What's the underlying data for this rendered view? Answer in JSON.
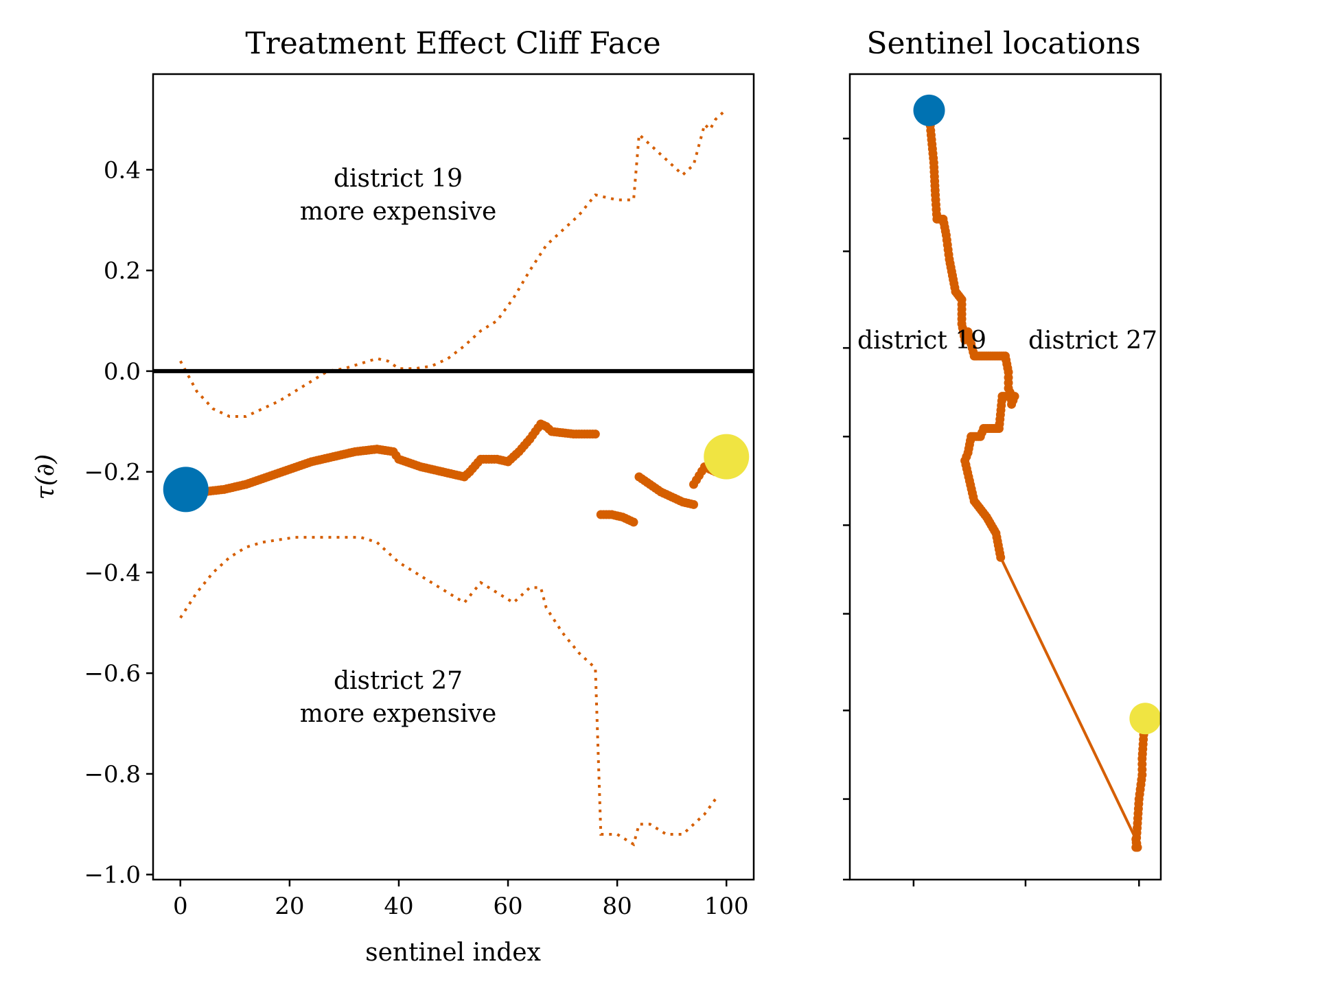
{
  "colors": {
    "series": "#d55e00",
    "start_marker": "#0072b2",
    "end_marker": "#f0e442",
    "zero_line": "#000000"
  },
  "chart_data": [
    {
      "type": "scatter",
      "title": "Treatment Effect Cliff Face",
      "xlabel": "sentinel index",
      "ylabel": "τ(∂)",
      "xlim": [
        -5,
        105
      ],
      "ylim": [
        -1.01,
        0.59
      ],
      "xticks": [
        0,
        20,
        40,
        60,
        80,
        100
      ],
      "xtick_labels": [
        "0",
        "20",
        "40",
        "60",
        "80",
        "100"
      ],
      "yticks": [
        0.4,
        0.2,
        0.0,
        -0.2,
        -0.4,
        -0.6,
        -0.8,
        -1.0
      ],
      "ytick_labels": [
        "0.4",
        "0.2",
        "0.0",
        "−0.2",
        "−0.4",
        "−0.6",
        "−0.8",
        "−1.0"
      ],
      "grid": false,
      "reference_line_y": 0.0,
      "annotations": [
        {
          "lines": [
            "district 19",
            "more expensive"
          ],
          "x": 40,
          "y": 0.4
        },
        {
          "lines": [
            "district 27",
            "more expensive"
          ],
          "x": 40,
          "y": -0.6
        }
      ],
      "estimate": {
        "x": [
          1,
          4,
          8,
          12,
          16,
          20,
          24,
          28,
          32,
          36,
          39,
          40,
          44,
          48,
          52,
          53,
          55,
          58,
          60,
          62,
          64,
          66,
          67,
          68,
          72,
          76
        ],
        "y": [
          -0.235,
          -0.24,
          -0.235,
          -0.225,
          -0.21,
          -0.195,
          -0.18,
          -0.17,
          -0.16,
          -0.155,
          -0.16,
          -0.175,
          -0.19,
          -0.2,
          -0.21,
          -0.2,
          -0.175,
          -0.175,
          -0.18,
          -0.16,
          -0.135,
          -0.105,
          -0.11,
          -0.12,
          -0.125,
          -0.125
        ],
        "segments": [
          {
            "x": [
              77,
              79,
              81,
              83
            ],
            "y": [
              -0.285,
              -0.285,
              -0.29,
              -0.3
            ]
          },
          {
            "x": [
              84,
              86,
              88,
              90,
              92,
              94
            ],
            "y": [
              -0.21,
              -0.225,
              -0.24,
              -0.25,
              -0.26,
              -0.265
            ]
          },
          {
            "x": [
              94,
              96,
              98
            ],
            "y": [
              -0.225,
              -0.19,
              -0.2
            ]
          }
        ]
      },
      "upper_bound": {
        "x": [
          0,
          3,
          6,
          9,
          12,
          15,
          18,
          21,
          24,
          27,
          30,
          33,
          36,
          38,
          40,
          43,
          46,
          49,
          52,
          55,
          58,
          61,
          64,
          67,
          70,
          73,
          76,
          80,
          83,
          84,
          86,
          89,
          92,
          94,
          96,
          97,
          98,
          100
        ],
        "y": [
          0.02,
          -0.04,
          -0.075,
          -0.09,
          -0.09,
          -0.075,
          -0.06,
          -0.04,
          -0.02,
          0.0,
          0.005,
          0.015,
          0.025,
          0.02,
          0.005,
          0.005,
          0.01,
          0.025,
          0.05,
          0.08,
          0.1,
          0.145,
          0.2,
          0.25,
          0.28,
          0.31,
          0.35,
          0.34,
          0.34,
          0.47,
          0.45,
          0.42,
          0.39,
          0.41,
          0.49,
          0.48,
          0.5,
          0.52
        ]
      },
      "lower_bound": {
        "x": [
          0,
          3,
          6,
          9,
          12,
          15,
          18,
          21,
          24,
          27,
          30,
          33,
          36,
          38,
          40,
          43,
          46,
          49,
          52,
          55,
          58,
          61,
          64,
          66,
          67,
          70,
          73,
          76,
          77,
          80,
          83,
          84,
          86,
          89,
          92,
          94,
          96,
          98
        ],
        "y": [
          -0.49,
          -0.44,
          -0.4,
          -0.37,
          -0.35,
          -0.34,
          -0.335,
          -0.33,
          -0.33,
          -0.33,
          -0.33,
          -0.33,
          -0.34,
          -0.36,
          -0.38,
          -0.4,
          -0.42,
          -0.44,
          -0.46,
          -0.42,
          -0.44,
          -0.46,
          -0.43,
          -0.43,
          -0.47,
          -0.52,
          -0.56,
          -0.59,
          -0.92,
          -0.92,
          -0.94,
          -0.9,
          -0.9,
          -0.92,
          -0.92,
          -0.9,
          -0.88,
          -0.85
        ]
      },
      "start_point": {
        "x": 1,
        "y": -0.235
      },
      "end_point": {
        "x": 100,
        "y": -0.17
      }
    },
    {
      "type": "line",
      "title": "Sentinel locations",
      "xlim": [
        0,
        1
      ],
      "ylim": [
        0,
        1
      ],
      "ticks_unlabeled": true,
      "annotations": [
        {
          "text": "district 19",
          "x": 0.23,
          "y": 0.64
        },
        {
          "text": "district 27",
          "x": 0.79,
          "y": 0.64
        }
      ],
      "path": {
        "x": [
          0.255,
          0.26,
          0.27,
          0.275,
          0.28,
          0.3,
          0.31,
          0.32,
          0.33,
          0.34,
          0.36,
          0.36,
          0.37,
          0.38,
          0.4,
          0.41,
          0.5,
          0.51,
          0.51,
          0.52,
          0.52,
          0.53,
          0.49,
          0.48,
          0.43,
          0.42,
          0.39,
          0.38,
          0.37,
          0.4,
          0.44,
          0.47,
          0.48,
          0.485,
          0.92,
          0.925,
          0.92,
          0.925,
          0.93,
          0.94,
          0.94,
          0.945,
          0.95
        ],
        "y": [
          0.955,
          0.93,
          0.89,
          0.85,
          0.82,
          0.82,
          0.8,
          0.77,
          0.75,
          0.73,
          0.72,
          0.69,
          0.67,
          0.68,
          0.65,
          0.65,
          0.65,
          0.63,
          0.61,
          0.6,
          0.59,
          0.6,
          0.6,
          0.56,
          0.56,
          0.55,
          0.55,
          0.53,
          0.52,
          0.47,
          0.45,
          0.43,
          0.41,
          0.4,
          0.05,
          0.04,
          0.04,
          0.07,
          0.1,
          0.13,
          0.15,
          0.18,
          0.2
        ]
      },
      "start_point": {
        "x": 0.255,
        "y": 0.955
      },
      "end_point": {
        "x": 0.95,
        "y": 0.2
      }
    }
  ]
}
